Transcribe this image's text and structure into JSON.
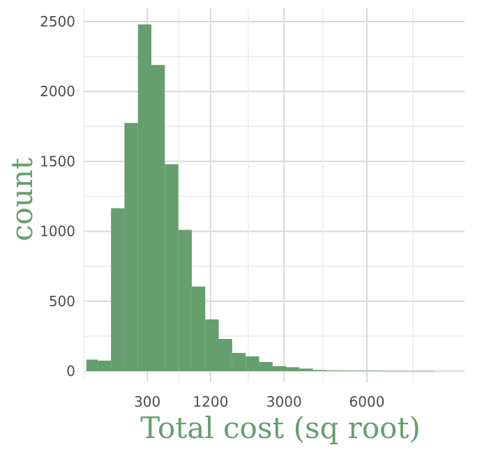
{
  "chart_data": {
    "type": "bar",
    "subtype": "histogram",
    "x_scale": "sqrt",
    "xlabel": "Total cost (sq root)",
    "ylabel": "count",
    "ylim": [
      0,
      2500
    ],
    "y_ticks": [
      0,
      500,
      1000,
      1500,
      2000,
      2500
    ],
    "x_ticks": [
      300,
      1200,
      3000,
      6000
    ],
    "x_minor_gridlines": [
      0,
      675,
      2025,
      4275,
      8100
    ],
    "grid": true,
    "colors": {
      "bar": "#659f6e",
      "label": "#659f6e",
      "grid": "#d9d9d9",
      "tick_text": "#4d4d4d"
    },
    "bins": [
      {
        "x_start": 0.39,
        "x_end": 13.61,
        "count": 82
      },
      {
        "x_start": 13.61,
        "x_end": 54.4,
        "count": 75
      },
      {
        "x_start": 54.4,
        "x_end": 122.39,
        "count": 1165
      },
      {
        "x_start": 122.39,
        "x_end": 217.58,
        "count": 1775
      },
      {
        "x_start": 217.58,
        "x_end": 339.97,
        "count": 2480
      },
      {
        "x_start": 339.97,
        "x_end": 489.55,
        "count": 2190
      },
      {
        "x_start": 489.55,
        "x_end": 666.33,
        "count": 1480
      },
      {
        "x_start": 666.33,
        "x_end": 870.31,
        "count": 1010
      },
      {
        "x_start": 870.31,
        "x_end": 1101.49,
        "count": 605
      },
      {
        "x_start": 1101.49,
        "x_end": 1359.86,
        "count": 370
      },
      {
        "x_start": 1359.86,
        "x_end": 1645.44,
        "count": 230
      },
      {
        "x_start": 1645.44,
        "x_end": 1958.21,
        "count": 130
      },
      {
        "x_start": 1958.21,
        "x_end": 2298.18,
        "count": 105
      },
      {
        "x_start": 2298.18,
        "x_end": 2665.35,
        "count": 65
      },
      {
        "x_start": 2665.35,
        "x_end": 3059.72,
        "count": 35
      },
      {
        "x_start": 3059.72,
        "x_end": 3481.29,
        "count": 28
      },
      {
        "x_start": 3481.29,
        "x_end": 3930.06,
        "count": 18
      },
      {
        "x_start": 3930.06,
        "x_end": 4406.02,
        "count": 8
      },
      {
        "x_start": 4406.02,
        "x_end": 4909.19,
        "count": 5
      },
      {
        "x_start": 4909.19,
        "x_end": 5439.55,
        "count": 4
      },
      {
        "x_start": 5439.55,
        "x_end": 5997.11,
        "count": 3
      },
      {
        "x_start": 5997.11,
        "x_end": 6581.87,
        "count": 3
      },
      {
        "x_start": 6581.87,
        "x_end": 7193.83,
        "count": 1
      },
      {
        "x_start": 7193.83,
        "x_end": 7832.99,
        "count": 1
      },
      {
        "x_start": 7832.99,
        "x_end": 8499.35,
        "count": 1
      },
      {
        "x_start": 8499.35,
        "x_end": 9192.9,
        "count": 1
      }
    ]
  }
}
